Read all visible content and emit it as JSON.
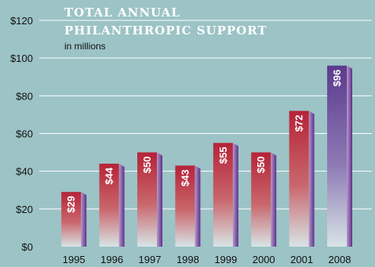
{
  "chart_data": {
    "type": "bar",
    "title_lines": [
      "TOTAL ANNUAL",
      "PHILANTHROPIC SUPPORT"
    ],
    "subtitle": "in millions",
    "categories": [
      "1995",
      "1996",
      "1997",
      "1998",
      "1999",
      "2000",
      "2001",
      "2008"
    ],
    "values": [
      29,
      44,
      50,
      43,
      55,
      50,
      72,
      96
    ],
    "value_labels": [
      "$29",
      "$44",
      "$50",
      "$43",
      "$55",
      "$50",
      "$72",
      "$96"
    ],
    "yticks": [
      "$0",
      "$20",
      "$40",
      "$60",
      "$80",
      "$100",
      "$120"
    ],
    "ylim": [
      0,
      120
    ],
    "grid": true,
    "colors": {
      "background": "#9cc3c6",
      "bar_red": "#b52338",
      "bar_purple": "#5b3a8e",
      "bar_fade": "#d8e4e6",
      "side_light": "#b59ac9",
      "side_dark": "#5e2f8a",
      "grid": "#ffffff"
    }
  }
}
